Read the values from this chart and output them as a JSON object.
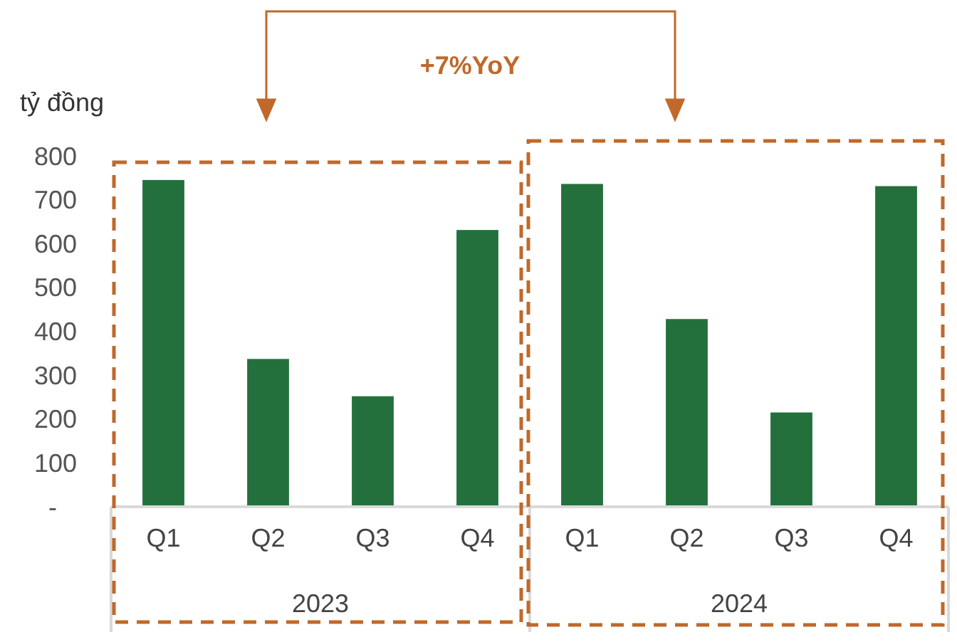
{
  "chart_data": {
    "type": "bar",
    "ylabel": "tỷ đồng",
    "categories": [
      "Q1",
      "Q2",
      "Q3",
      "Q4",
      "Q1",
      "Q2",
      "Q3",
      "Q4"
    ],
    "values": [
      745,
      337,
      252,
      631,
      736,
      428,
      215,
      731
    ],
    "color": "#23703d",
    "ylim": [
      0,
      800
    ],
    "yticks": [
      {
        "value": 0,
        "label": "-"
      },
      100,
      200,
      300,
      400,
      500,
      600,
      700,
      800
    ],
    "annotations": [
      "2023",
      "2024",
      "+7%YoY"
    ],
    "grid": false
  }
}
